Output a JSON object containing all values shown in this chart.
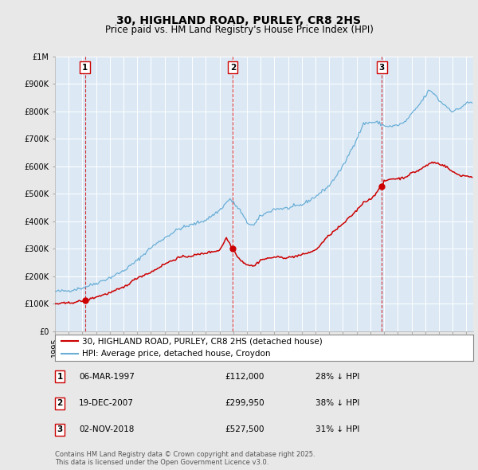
{
  "title": "30, HIGHLAND ROAD, PURLEY, CR8 2HS",
  "subtitle": "Price paid vs. HM Land Registry's House Price Index (HPI)",
  "ylim": [
    0,
    1000000
  ],
  "yticks": [
    0,
    100000,
    200000,
    300000,
    400000,
    500000,
    600000,
    700000,
    800000,
    900000,
    1000000
  ],
  "ytick_labels": [
    "£0",
    "£100K",
    "£200K",
    "£300K",
    "£400K",
    "£500K",
    "£600K",
    "£700K",
    "£800K",
    "£900K",
    "£1M"
  ],
  "xlim_start": 1995.0,
  "xlim_end": 2025.5,
  "fig_bg_color": "#e8e8e8",
  "plot_bg_color": "#dce9f5",
  "grid_color": "#ffffff",
  "hpi_color": "#6aaed6",
  "price_color": "#cc0000",
  "sale_marker_color": "#cc0000",
  "vline_color": "#cc0000",
  "legend_label_price": "30, HIGHLAND ROAD, PURLEY, CR8 2HS (detached house)",
  "legend_label_hpi": "HPI: Average price, detached house, Croydon",
  "sales": [
    {
      "num": 1,
      "date": 1997.18,
      "price": 112000,
      "label": "1",
      "table_date": "06-MAR-1997",
      "table_price": "£112,000",
      "table_pct": "28% ↓ HPI"
    },
    {
      "num": 2,
      "date": 2007.97,
      "price": 299950,
      "label": "2",
      "table_date": "19-DEC-2007",
      "table_price": "£299,950",
      "table_pct": "38% ↓ HPI"
    },
    {
      "num": 3,
      "date": 2018.84,
      "price": 527500,
      "label": "3",
      "table_date": "02-NOV-2018",
      "table_price": "£527,500",
      "table_pct": "31% ↓ HPI"
    }
  ],
  "footer": "Contains HM Land Registry data © Crown copyright and database right 2025.\nThis data is licensed under the Open Government Licence v3.0.",
  "title_fontsize": 10,
  "subtitle_fontsize": 8.5,
  "tick_fontsize": 7,
  "legend_fontsize": 7.5,
  "table_fontsize": 7.5
}
